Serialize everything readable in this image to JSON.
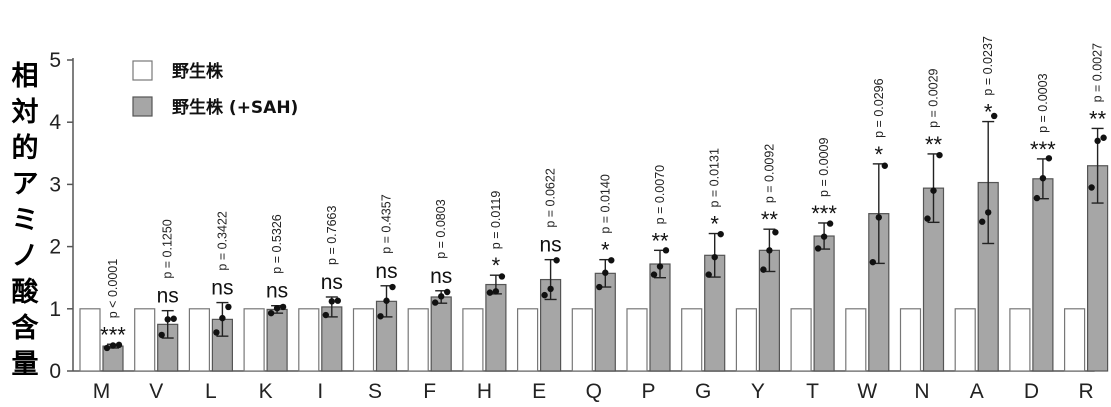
{
  "chart_data": {
    "type": "bar",
    "ylabel": "相対的アミノ酸含量",
    "ylim": [
      0,
      5
    ],
    "yticks": [
      "0",
      "1",
      "2",
      "3",
      "4",
      "5"
    ],
    "categories": [
      "M",
      "V",
      "L",
      "K",
      "I",
      "S",
      "F",
      "H",
      "E",
      "Q",
      "P",
      "G",
      "Y",
      "T",
      "W",
      "N",
      "A",
      "D",
      "R"
    ],
    "series": [
      {
        "name": "野生株",
        "color": "#ffffff",
        "values": [
          1,
          1,
          1,
          1,
          1,
          1,
          1,
          1,
          1,
          1,
          1,
          1,
          1,
          1,
          1,
          1,
          1,
          1,
          1
        ]
      },
      {
        "name": "野生株 (+SAH)",
        "color": "#a6a6a6",
        "values": [
          0.4,
          0.75,
          0.83,
          0.99,
          1.03,
          1.12,
          1.19,
          1.39,
          1.47,
          1.57,
          1.72,
          1.86,
          1.94,
          2.17,
          2.53,
          2.94,
          3.03,
          3.09,
          3.3
        ],
        "sd": [
          0.03,
          0.22,
          0.27,
          0.06,
          0.16,
          0.25,
          0.1,
          0.15,
          0.32,
          0.22,
          0.22,
          0.35,
          0.34,
          0.21,
          0.8,
          0.55,
          0.98,
          0.32,
          0.6
        ],
        "points": [
          [
            0.37,
            0.41,
            0.42
          ],
          [
            0.58,
            0.83,
            0.84
          ],
          [
            0.62,
            0.85,
            1.03
          ],
          [
            0.93,
            1.01,
            1.03
          ],
          [
            0.9,
            1.12,
            1.13
          ],
          [
            0.88,
            1.13,
            1.35
          ],
          [
            1.1,
            1.2,
            1.27
          ],
          [
            1.26,
            1.28,
            1.52
          ],
          [
            1.22,
            1.32,
            1.78
          ],
          [
            1.35,
            1.58,
            1.78
          ],
          [
            1.55,
            1.68,
            1.94
          ],
          [
            1.55,
            1.83,
            2.2
          ],
          [
            1.63,
            1.94,
            2.23
          ],
          [
            1.97,
            2.16,
            2.37
          ],
          [
            1.75,
            2.47,
            3.3
          ],
          [
            2.45,
            2.9,
            3.47
          ],
          [
            2.4,
            2.55,
            4.1
          ],
          [
            2.78,
            3.1,
            3.42
          ],
          [
            2.95,
            3.7,
            3.75
          ]
        ]
      }
    ],
    "significance": [
      "***",
      "ns",
      "ns",
      "ns",
      "ns",
      "ns",
      "ns",
      "*",
      "ns",
      "*",
      "**",
      "*",
      "**",
      "***",
      "*",
      "**",
      "*",
      "***",
      "**"
    ],
    "p_values": [
      "p < 0.0001",
      "p = 0.1250",
      "p = 0.3422",
      "p = 0.5326",
      "p = 0.7663",
      "p = 0.4357",
      "p = 0.0803",
      "p = 0.0119",
      "p = 0.0622",
      "p = 0.0140",
      "p = 0.0070",
      "p = 0.0131",
      "p = 0.0092",
      "p = 0.0009",
      "p = 0.0296",
      "p = 0.0029",
      "p = 0.0237",
      "p = 0.0003",
      "p = 0.0027"
    ],
    "legend_position": "top-left"
  }
}
